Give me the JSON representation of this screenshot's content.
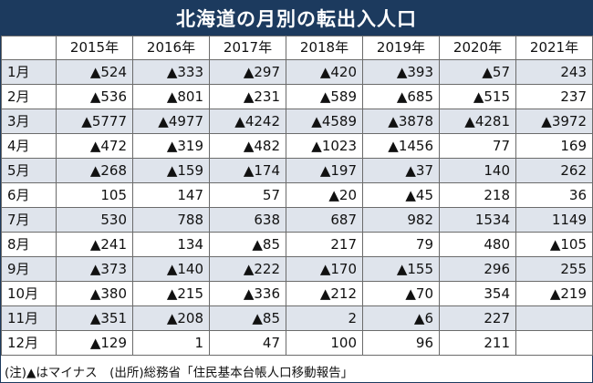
{
  "title": "北海道の月別の転出入人口",
  "chart_data": {
    "type": "table",
    "title": "北海道の月別の転出入人口",
    "corner": "",
    "columns": [
      "2015年",
      "2016年",
      "2017年",
      "2018年",
      "2019年",
      "2020年",
      "2021年"
    ],
    "rows": [
      {
        "month": "1月",
        "cells": [
          "▲524",
          "▲333",
          "▲297",
          "▲420",
          "▲393",
          "▲57",
          "243"
        ]
      },
      {
        "month": "2月",
        "cells": [
          "▲536",
          "▲801",
          "▲231",
          "▲589",
          "▲685",
          "▲515",
          "237"
        ]
      },
      {
        "month": "3月",
        "cells": [
          "▲5777",
          "▲4977",
          "▲4242",
          "▲4589",
          "▲3878",
          "▲4281",
          "▲3972"
        ]
      },
      {
        "month": "4月",
        "cells": [
          "▲472",
          "▲319",
          "▲482",
          "▲1023",
          "▲1456",
          "77",
          "169"
        ]
      },
      {
        "month": "5月",
        "cells": [
          "▲268",
          "▲159",
          "▲174",
          "▲197",
          "▲37",
          "140",
          "262"
        ]
      },
      {
        "month": "6月",
        "cells": [
          "105",
          "147",
          "57",
          "▲20",
          "▲45",
          "218",
          "36"
        ]
      },
      {
        "month": "7月",
        "cells": [
          "530",
          "788",
          "638",
          "687",
          "982",
          "1534",
          "1149"
        ]
      },
      {
        "month": "8月",
        "cells": [
          "▲241",
          "134",
          "▲85",
          "217",
          "79",
          "480",
          "▲105"
        ]
      },
      {
        "month": "9月",
        "cells": [
          "▲373",
          "▲140",
          "▲222",
          "▲170",
          "▲155",
          "296",
          "255"
        ]
      },
      {
        "month": "10月",
        "cells": [
          "▲380",
          "▲215",
          "▲336",
          "▲212",
          "▲70",
          "354",
          "▲219"
        ]
      },
      {
        "month": "11月",
        "cells": [
          "▲351",
          "▲208",
          "▲85",
          "2",
          "▲6",
          "227",
          ""
        ]
      },
      {
        "month": "12月",
        "cells": [
          "▲129",
          "1",
          "47",
          "100",
          "96",
          "211",
          ""
        ]
      }
    ]
  },
  "colors": {
    "title_background": "#1c3a5e",
    "title_text": "#ffffff",
    "stripe_row": "#dfe4ec",
    "border": "#6b6b6b"
  },
  "footnote": "(注)▲はマイナス　(出所)総務省「住民基本台帳人口移動報告」"
}
